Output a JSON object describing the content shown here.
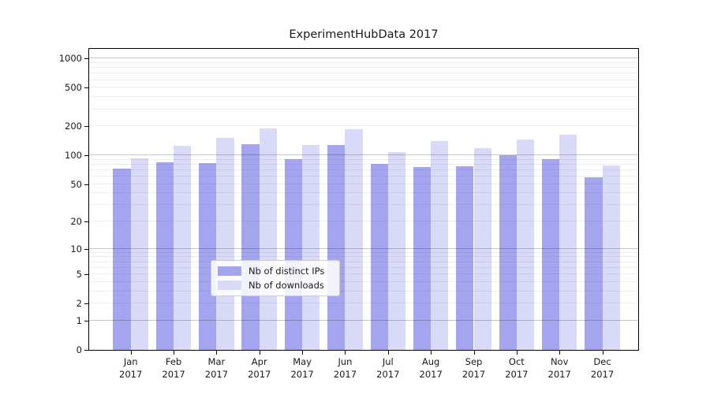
{
  "title": "ExperimentHubData 2017",
  "chart_data": {
    "type": "bar",
    "title": "ExperimentHubData 2017",
    "categories": [
      "Jan 2017",
      "Feb 2017",
      "Mar 2017",
      "Apr 2017",
      "May 2017",
      "Jun 2017",
      "Jul 2017",
      "Aug 2017",
      "Sep 2017",
      "Oct 2017",
      "Nov 2017",
      "Dec 2017"
    ],
    "months": [
      "Jan",
      "Feb",
      "Mar",
      "Apr",
      "May",
      "Jun",
      "Jul",
      "Aug",
      "Sep",
      "Oct",
      "Nov",
      "Dec"
    ],
    "year_label": "2017",
    "series": [
      {
        "name": "Nb of distinct IPs",
        "color": "#a5a5ef",
        "values": [
          73,
          85,
          83,
          130,
          92,
          127,
          81,
          75,
          77,
          101,
          92,
          59
        ]
      },
      {
        "name": "Nb of downloads",
        "color": "#d9d9f8",
        "values": [
          93,
          125,
          152,
          190,
          129,
          186,
          108,
          140,
          118,
          145,
          162,
          78
        ]
      }
    ],
    "y_axis": {
      "scale": "log1p",
      "axis_max_value": 1259,
      "tick_values": [
        0,
        1,
        2,
        5,
        10,
        20,
        50,
        100,
        200,
        500,
        1000
      ],
      "tick_labels": [
        "0",
        "1",
        "2",
        "5",
        "10",
        "20",
        "50",
        "100",
        "200",
        "500",
        "1000"
      ],
      "major_gridlines": [
        1,
        10,
        100,
        1000
      ],
      "minor_gridlines": [
        2,
        3,
        4,
        5,
        6,
        7,
        8,
        9,
        20,
        30,
        40,
        50,
        60,
        70,
        80,
        90,
        200,
        300,
        400,
        500,
        600,
        700,
        800,
        900
      ]
    },
    "xlabel": "",
    "ylabel": "",
    "grid": "on",
    "legend_position": "bottom-center",
    "legend": [
      "Nb of distinct IPs",
      "Nb of downloads"
    ]
  },
  "legend": {
    "distinct_ips_label": "Nb of distinct IPs",
    "downloads_label": "Nb of downloads"
  },
  "colors": {
    "bar_distinct_ips": "#a5a5ef",
    "bar_downloads": "#d9d9f8",
    "grid_major": "rgba(0,0,0,0.22)",
    "grid_minor": "rgba(0,0,0,0.065)",
    "axis": "#000000",
    "text": "#1a1a1a"
  }
}
